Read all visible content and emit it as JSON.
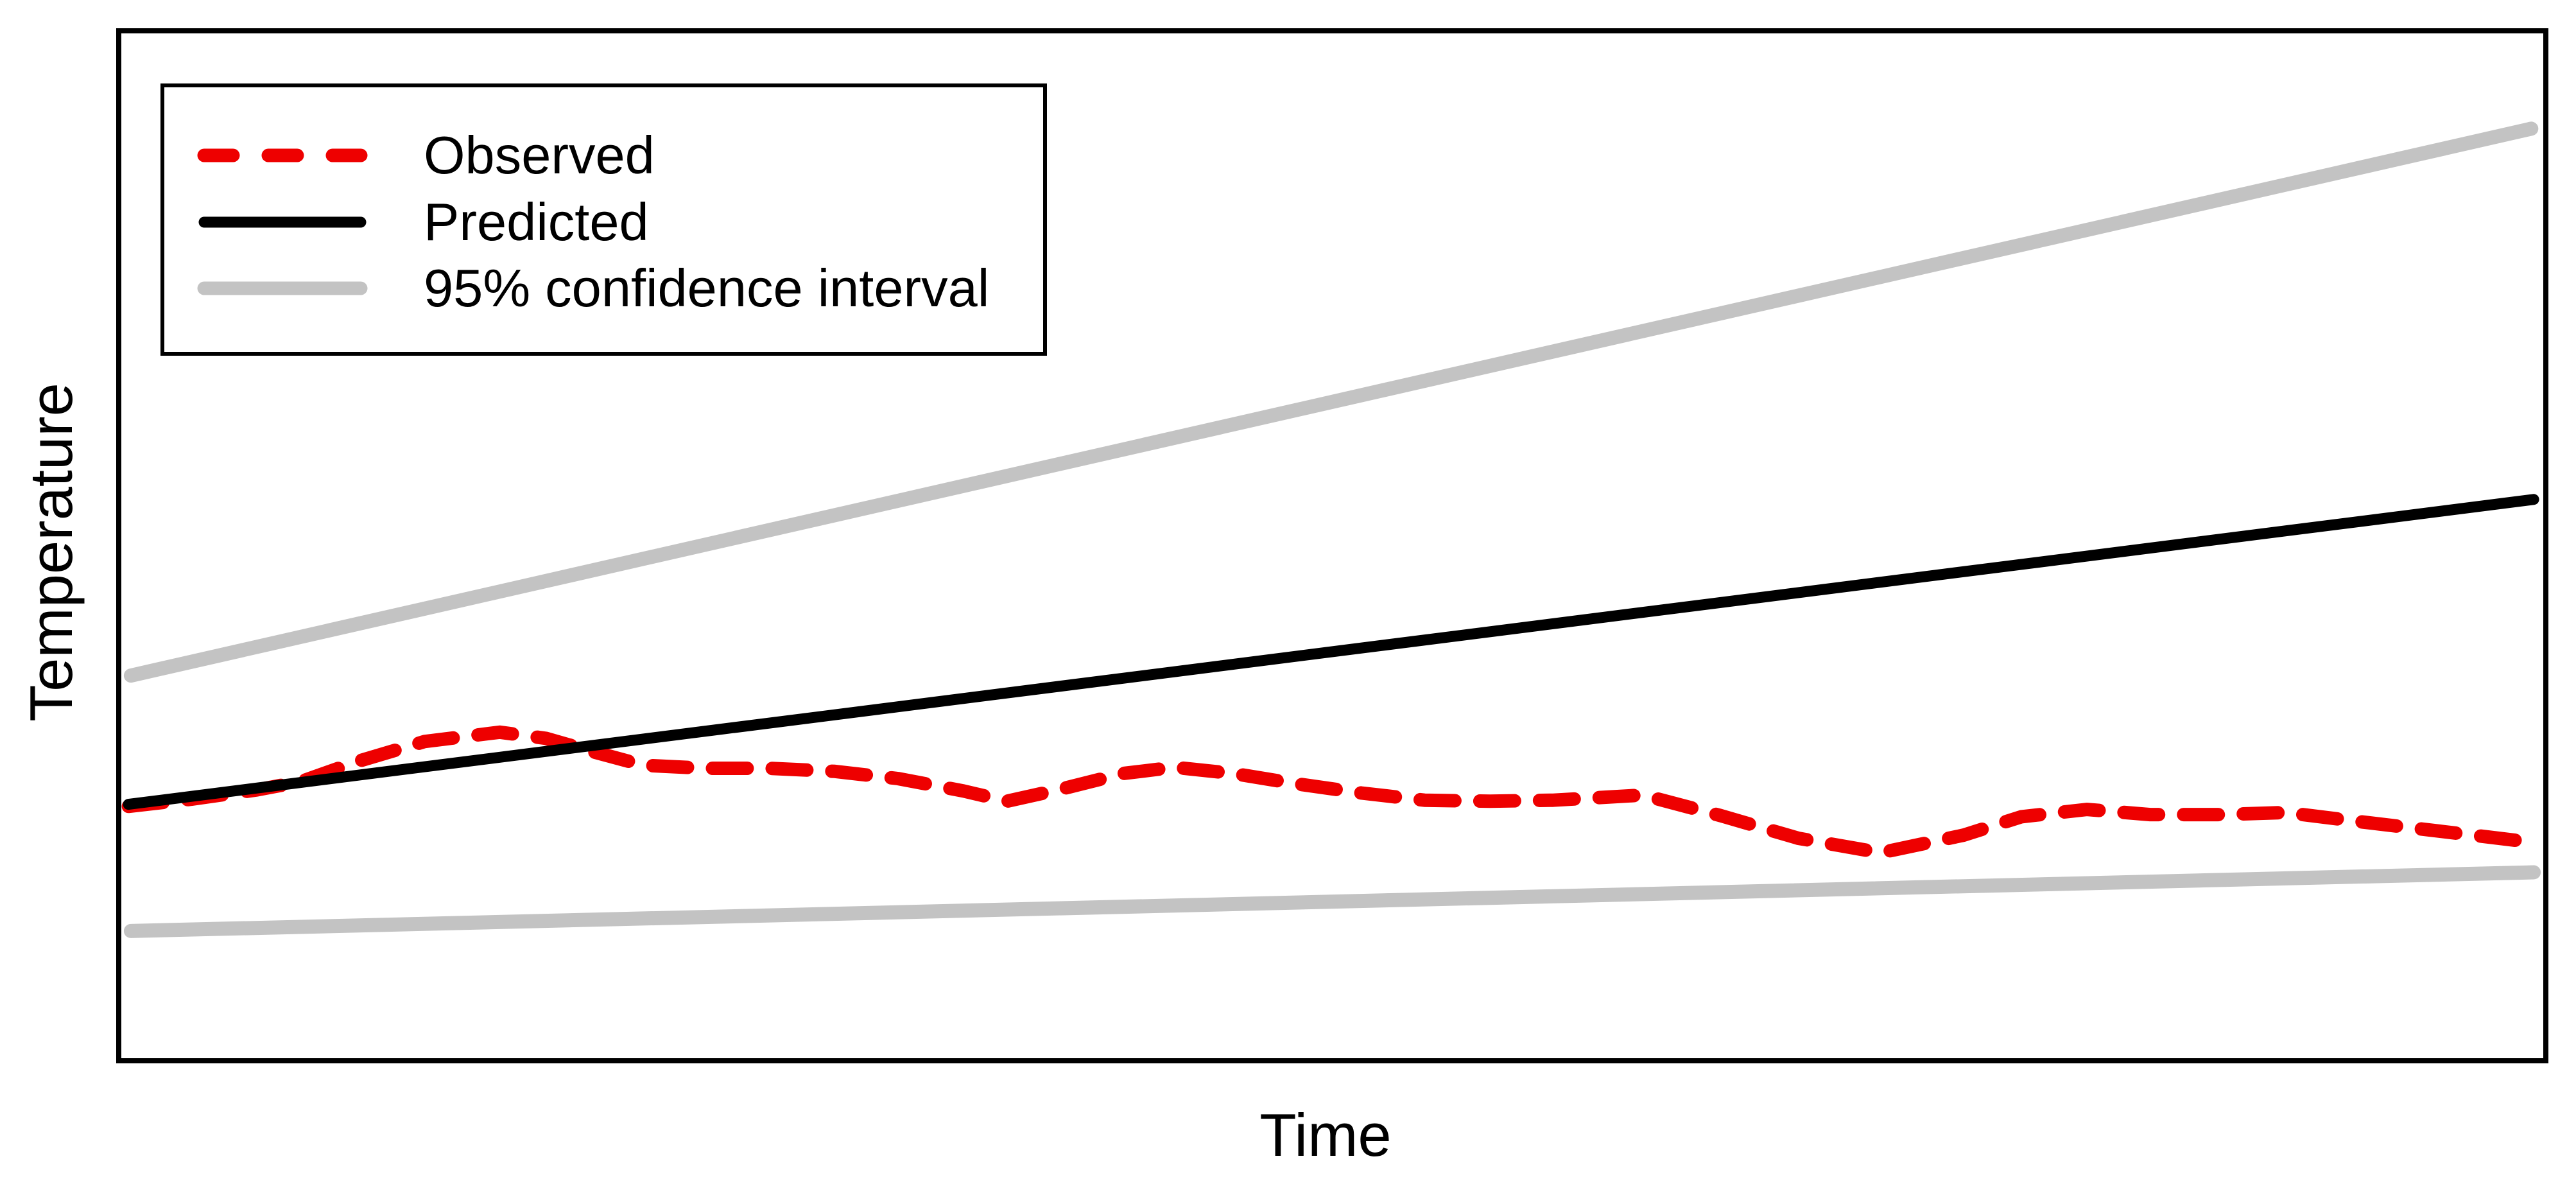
{
  "chart_data": {
    "type": "line",
    "title": "",
    "xlabel": "Time",
    "ylabel": "Temperature",
    "x_axis": {
      "tick_labels": [],
      "range_normalized": [
        0,
        1
      ]
    },
    "y_axis": {
      "tick_labels": [],
      "range_normalized": [
        0,
        1
      ]
    },
    "grid": false,
    "legend_position": "top-left",
    "series": [
      {
        "name": "Observed",
        "color": "#EE0000",
        "line_style": "dashed",
        "line_width": 21,
        "dash_pattern": [
          54,
          39
        ],
        "points_normalized": [
          [
            0.004,
            0.247
          ],
          [
            0.03,
            0.254
          ],
          [
            0.057,
            0.263
          ],
          [
            0.075,
            0.271
          ],
          [
            0.099,
            0.291
          ],
          [
            0.126,
            0.31
          ],
          [
            0.157,
            0.319
          ],
          [
            0.176,
            0.313
          ],
          [
            0.194,
            0.301
          ],
          [
            0.216,
            0.287
          ],
          [
            0.242,
            0.284
          ],
          [
            0.268,
            0.284
          ],
          [
            0.295,
            0.281
          ],
          [
            0.321,
            0.274
          ],
          [
            0.348,
            0.262
          ],
          [
            0.366,
            0.252
          ],
          [
            0.387,
            0.263
          ],
          [
            0.414,
            0.279
          ],
          [
            0.435,
            0.285
          ],
          [
            0.459,
            0.279
          ],
          [
            0.485,
            0.269
          ],
          [
            0.512,
            0.26
          ],
          [
            0.538,
            0.253
          ],
          [
            0.565,
            0.252
          ],
          [
            0.591,
            0.253
          ],
          [
            0.628,
            0.258
          ],
          [
            0.66,
            0.238
          ],
          [
            0.692,
            0.216
          ],
          [
            0.726,
            0.202
          ],
          [
            0.76,
            0.219
          ],
          [
            0.784,
            0.237
          ],
          [
            0.811,
            0.244
          ],
          [
            0.837,
            0.239
          ],
          [
            0.866,
            0.239
          ],
          [
            0.893,
            0.241
          ],
          [
            0.924,
            0.232
          ],
          [
            0.956,
            0.223
          ],
          [
            0.995,
            0.212
          ]
        ]
      },
      {
        "name": "Predicted",
        "color": "#000000",
        "line_style": "solid",
        "line_width": 17,
        "dash_pattern": null,
        "points_normalized": [
          [
            0.004,
            0.249
          ],
          [
            0.995,
            0.545
          ]
        ]
      },
      {
        "name": "95% confidence interval (upper bound)",
        "color": "#C3C3C3",
        "line_style": "solid",
        "line_width": 22,
        "dash_pattern": null,
        "points_normalized": [
          [
            0.005,
            0.374
          ],
          [
            0.994,
            0.905
          ]
        ]
      },
      {
        "name": "95% confidence interval (lower bound)",
        "color": "#C3C3C3",
        "line_style": "solid",
        "line_width": 22,
        "dash_pattern": null,
        "points_normalized": [
          [
            0.005,
            0.126
          ],
          [
            0.995,
            0.183
          ]
        ]
      }
    ]
  },
  "legend": {
    "items": [
      {
        "label": "Observed",
        "color": "#EE0000",
        "style": "dashed"
      },
      {
        "label": "Predicted",
        "color": "#000000",
        "style": "solid"
      },
      {
        "label": "95% confidence interval",
        "color": "#C3C3C3",
        "style": "solid"
      }
    ]
  },
  "labels": {
    "xlabel": "Time",
    "ylabel": "Temperature"
  },
  "colors": {
    "observed": "#EE0000",
    "predicted": "#000000",
    "confidence_interval": "#C3C3C3",
    "plot_border": "#000000",
    "background": "#FFFFFF"
  }
}
